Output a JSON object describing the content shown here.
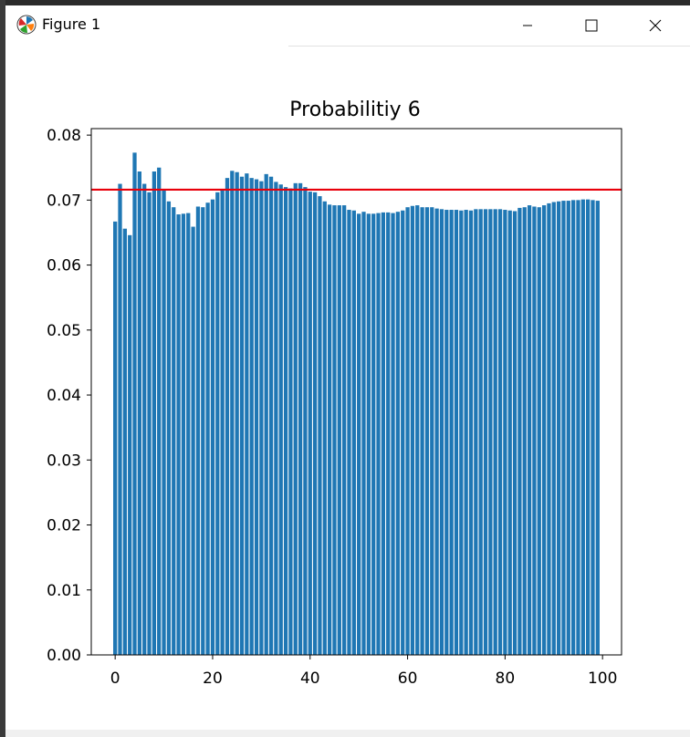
{
  "window": {
    "title": "Figure 1"
  },
  "chart_data": {
    "type": "bar",
    "title": "Probabilitiy 6",
    "xlabel": "",
    "ylabel": "",
    "x": [
      0,
      1,
      2,
      3,
      4,
      5,
      6,
      7,
      8,
      9,
      10,
      11,
      12,
      13,
      14,
      15,
      16,
      17,
      18,
      19,
      20,
      21,
      22,
      23,
      24,
      25,
      26,
      27,
      28,
      29,
      30,
      31,
      32,
      33,
      34,
      35,
      36,
      37,
      38,
      39,
      40,
      41,
      42,
      43,
      44,
      45,
      46,
      47,
      48,
      49,
      50,
      51,
      52,
      53,
      54,
      55,
      56,
      57,
      58,
      59,
      60,
      61,
      62,
      63,
      64,
      65,
      66,
      67,
      68,
      69,
      70,
      71,
      72,
      73,
      74,
      75,
      76,
      77,
      78,
      79,
      80,
      81,
      82,
      83,
      84,
      85,
      86,
      87,
      88,
      89,
      90,
      91,
      92,
      93,
      94,
      95,
      96,
      97,
      98,
      99
    ],
    "values": [
      0.0667,
      0.0725,
      0.0656,
      0.0646,
      0.0773,
      0.0744,
      0.0725,
      0.0712,
      0.0744,
      0.075,
      0.0715,
      0.0698,
      0.0689,
      0.0678,
      0.0679,
      0.068,
      0.0659,
      0.069,
      0.0689,
      0.0696,
      0.0701,
      0.0712,
      0.0715,
      0.0734,
      0.0745,
      0.0743,
      0.0736,
      0.0741,
      0.0734,
      0.0732,
      0.0729,
      0.074,
      0.0736,
      0.0728,
      0.0724,
      0.072,
      0.0718,
      0.0726,
      0.0726,
      0.072,
      0.0713,
      0.0712,
      0.0706,
      0.0698,
      0.0693,
      0.0692,
      0.0692,
      0.0692,
      0.0685,
      0.0684,
      0.0679,
      0.0682,
      0.0679,
      0.0679,
      0.068,
      0.0681,
      0.0681,
      0.068,
      0.0682,
      0.0684,
      0.0689,
      0.0691,
      0.0692,
      0.0689,
      0.0689,
      0.0689,
      0.0687,
      0.0686,
      0.0685,
      0.0685,
      0.0685,
      0.0684,
      0.0685,
      0.0684,
      0.0686,
      0.0686,
      0.0686,
      0.0686,
      0.0686,
      0.0686,
      0.0685,
      0.0684,
      0.0683,
      0.0688,
      0.0689,
      0.0692,
      0.069,
      0.0689,
      0.0692,
      0.0695,
      0.0697,
      0.0698,
      0.0699,
      0.0699,
      0.07,
      0.07,
      0.0701,
      0.0701,
      0.07,
      0.0699
    ],
    "reference_line": {
      "y": 0.0716,
      "color": "#e8000b"
    },
    "bar_color": "#1f77b4",
    "xlim": [
      -4.9,
      103.9
    ],
    "ylim": [
      0,
      0.081
    ],
    "xticks": [
      0,
      20,
      40,
      60,
      80,
      100
    ],
    "xtick_labels": [
      "0",
      "20",
      "40",
      "60",
      "80",
      "100"
    ],
    "yticks": [
      0.0,
      0.01,
      0.02,
      0.03,
      0.04,
      0.05,
      0.06,
      0.07,
      0.08
    ],
    "ytick_labels": [
      "0.00",
      "0.01",
      "0.02",
      "0.03",
      "0.04",
      "0.05",
      "0.06",
      "0.07",
      "0.08"
    ],
    "grid": false,
    "legend": "none"
  }
}
